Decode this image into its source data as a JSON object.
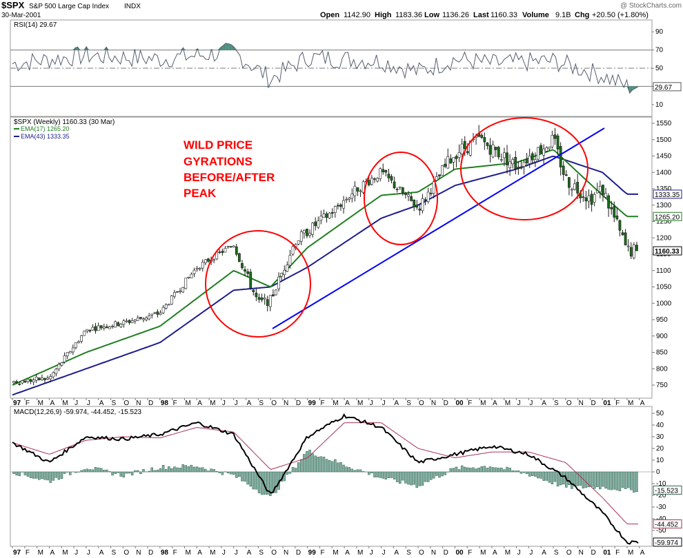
{
  "header": {
    "symbol": "$SPX",
    "name": "S&P 500 Large Cap Index",
    "exchange": "INDX",
    "date": "30-Mar-2001",
    "brand": "@ StockCharts.com",
    "open_label": "Open",
    "open": "1142.90",
    "high_label": "High",
    "high": "1183.36",
    "low_label": "Low",
    "low": "1136.26",
    "last_label": "Last",
    "last": "1160.33",
    "volume_label": "Volume",
    "volume": "9.1B",
    "chg_label": "Chg",
    "chg": "+20.50 (+1.80%)"
  },
  "rsi": {
    "label": "RSI(14) 29.67",
    "current": 29.67,
    "current_text": "29.67",
    "ticks": [
      "90",
      "70",
      "50",
      "30",
      "10"
    ]
  },
  "price": {
    "label": "$SPX (Weekly) 1160.33 (30 Mar)",
    "ema17_label": "EMA(17) 1265.20",
    "ema43_label": "EMA(43) 1333.35",
    "ema17_value": "1265.20",
    "ema43_value": "1333.35",
    "last_value": "1160.33",
    "annotation": [
      "WILD PRICE",
      "GYRATIONS",
      "BEFORE/AFTER",
      "PEAK"
    ],
    "ticks": [
      "1550",
      "1500",
      "1450",
      "1400",
      "1350",
      "1300",
      "1250",
      "1200",
      "1150",
      "1100",
      "1050",
      "1000",
      "950",
      "900",
      "850",
      "800",
      "750"
    ],
    "colors": {
      "ema17": "#1e7e1e",
      "ema43": "#1c1c8c",
      "candle": "#1b6b1b",
      "trendline": "#0000ff",
      "circles": "#ff0000"
    }
  },
  "macd": {
    "label": "MACD(12,26,9) -59.974, -44.452, -15.523",
    "macd_value": "-59.974",
    "signal_value": "-44.452",
    "hist_value": "-15.523",
    "ticks": [
      "50",
      "40",
      "30",
      "20",
      "10",
      "0",
      "-10",
      "-20",
      "-30",
      "-40",
      "-50"
    ]
  },
  "x_axis": {
    "labels": [
      "97",
      "F",
      "M",
      "A",
      "M",
      "J",
      "J",
      "A",
      "S",
      "O",
      "N",
      "D",
      "98",
      "F",
      "M",
      "A",
      "M",
      "J",
      "J",
      "A",
      "S",
      "O",
      "N",
      "D",
      "99",
      "F",
      "M",
      "A",
      "M",
      "J",
      "J",
      "A",
      "S",
      "O",
      "N",
      "D",
      "00",
      "F",
      "M",
      "A",
      "M",
      "J",
      "J",
      "A",
      "S",
      "O",
      "N",
      "D",
      "01",
      "F",
      "M",
      "A"
    ],
    "bold": [
      "97",
      "98",
      "99",
      "00",
      "01"
    ]
  },
  "chart_data": [
    {
      "type": "line",
      "title": "RSI(14)",
      "ylim": [
        0,
        100
      ],
      "x_range": [
        "1997-01",
        "2001-03"
      ],
      "guides": [
        30,
        50,
        70
      ],
      "series": [
        {
          "name": "RSI(14)",
          "x": [
            "1997-01",
            "1997-07",
            "1998-01",
            "1998-07",
            "1998-10",
            "1999-01",
            "1999-07",
            "1999-10",
            "2000-01",
            "2000-04",
            "2000-09",
            "2001-01",
            "2001-03"
          ],
          "values": [
            55,
            64,
            60,
            68,
            38,
            62,
            58,
            46,
            60,
            55,
            58,
            42,
            29.67
          ]
        }
      ]
    },
    {
      "type": "line",
      "title": "$SPX (Weekly) 1160.33 (30 Mar)",
      "ylim": [
        720,
        1570
      ],
      "x_range": [
        "1997-01",
        "2001-03"
      ],
      "series": [
        {
          "name": "$SPX",
          "x": [
            "1997-01",
            "1997-04",
            "1997-07",
            "1997-10",
            "1998-01",
            "1998-04",
            "1998-07",
            "1998-09",
            "1998-10",
            "1998-12",
            "1999-03",
            "1999-05",
            "1999-07",
            "1999-10",
            "2000-01",
            "2000-03",
            "2000-06",
            "2000-09",
            "2000-10",
            "2000-12",
            "2001-01",
            "2001-03"
          ],
          "values": [
            760,
            770,
            920,
            940,
            970,
            1110,
            1180,
            1000,
            1010,
            1190,
            1280,
            1350,
            1400,
            1290,
            1460,
            1500,
            1420,
            1500,
            1380,
            1320,
            1350,
            1160.33
          ]
        },
        {
          "name": "EMA(17)",
          "x": [
            "1997-01",
            "1997-07",
            "1998-01",
            "1998-07",
            "1998-10",
            "1999-01",
            "1999-07",
            "1999-10",
            "2000-01",
            "2000-06",
            "2000-09",
            "2001-01",
            "2001-03"
          ],
          "values": [
            750,
            850,
            930,
            1100,
            1050,
            1170,
            1330,
            1340,
            1410,
            1430,
            1470,
            1330,
            1265.2
          ]
        },
        {
          "name": "EMA(43)",
          "x": [
            "1997-01",
            "1997-07",
            "1998-01",
            "1998-07",
            "1998-10",
            "1999-01",
            "1999-07",
            "1999-10",
            "2000-01",
            "2000-06",
            "2000-09",
            "2001-01",
            "2001-03"
          ],
          "values": [
            720,
            800,
            880,
            1040,
            1050,
            1110,
            1260,
            1300,
            1360,
            1410,
            1450,
            1400,
            1333.35
          ]
        }
      ]
    },
    {
      "type": "line",
      "title": "MACD(12,26,9)",
      "ylim": [
        -65,
        55
      ],
      "x_range": [
        "1997-01",
        "2001-03"
      ],
      "series": [
        {
          "name": "MACD",
          "x": [
            "1997-01",
            "1997-04",
            "1997-07",
            "1997-10",
            "1998-01",
            "1998-04",
            "1998-07",
            "1998-10",
            "1999-01",
            "1999-04",
            "1999-07",
            "1999-10",
            "2000-01",
            "2000-04",
            "2000-07",
            "2000-10",
            "2001-01",
            "2001-03"
          ],
          "values": [
            25,
            8,
            30,
            28,
            32,
            42,
            32,
            -20,
            30,
            48,
            38,
            8,
            15,
            22,
            15,
            -5,
            -35,
            -59.974
          ]
        },
        {
          "name": "Signal",
          "x": [
            "1997-01",
            "1997-04",
            "1997-07",
            "1997-10",
            "1998-01",
            "1998-04",
            "1998-07",
            "1998-10",
            "1999-01",
            "1999-04",
            "1999-07",
            "1999-10",
            "2000-01",
            "2000-04",
            "2000-07",
            "2000-10",
            "2001-01",
            "2001-03"
          ],
          "values": [
            25,
            15,
            27,
            30,
            29,
            38,
            34,
            2,
            12,
            42,
            42,
            20,
            12,
            17,
            17,
            8,
            -22,
            -44.452
          ]
        },
        {
          "name": "Histogram",
          "x": [
            "1997-01",
            "1997-04",
            "1997-07",
            "1997-10",
            "1998-01",
            "1998-04",
            "1998-07",
            "1998-10",
            "1999-01",
            "1999-04",
            "1999-07",
            "1999-10",
            "2000-01",
            "2000-04",
            "2000-07",
            "2000-10",
            "2001-01",
            "2001-03"
          ],
          "values": [
            0,
            -8,
            4,
            -3,
            4,
            5,
            -3,
            -22,
            18,
            6,
            -5,
            -12,
            3,
            5,
            -2,
            -13,
            -13,
            -15.523
          ]
        }
      ]
    }
  ]
}
